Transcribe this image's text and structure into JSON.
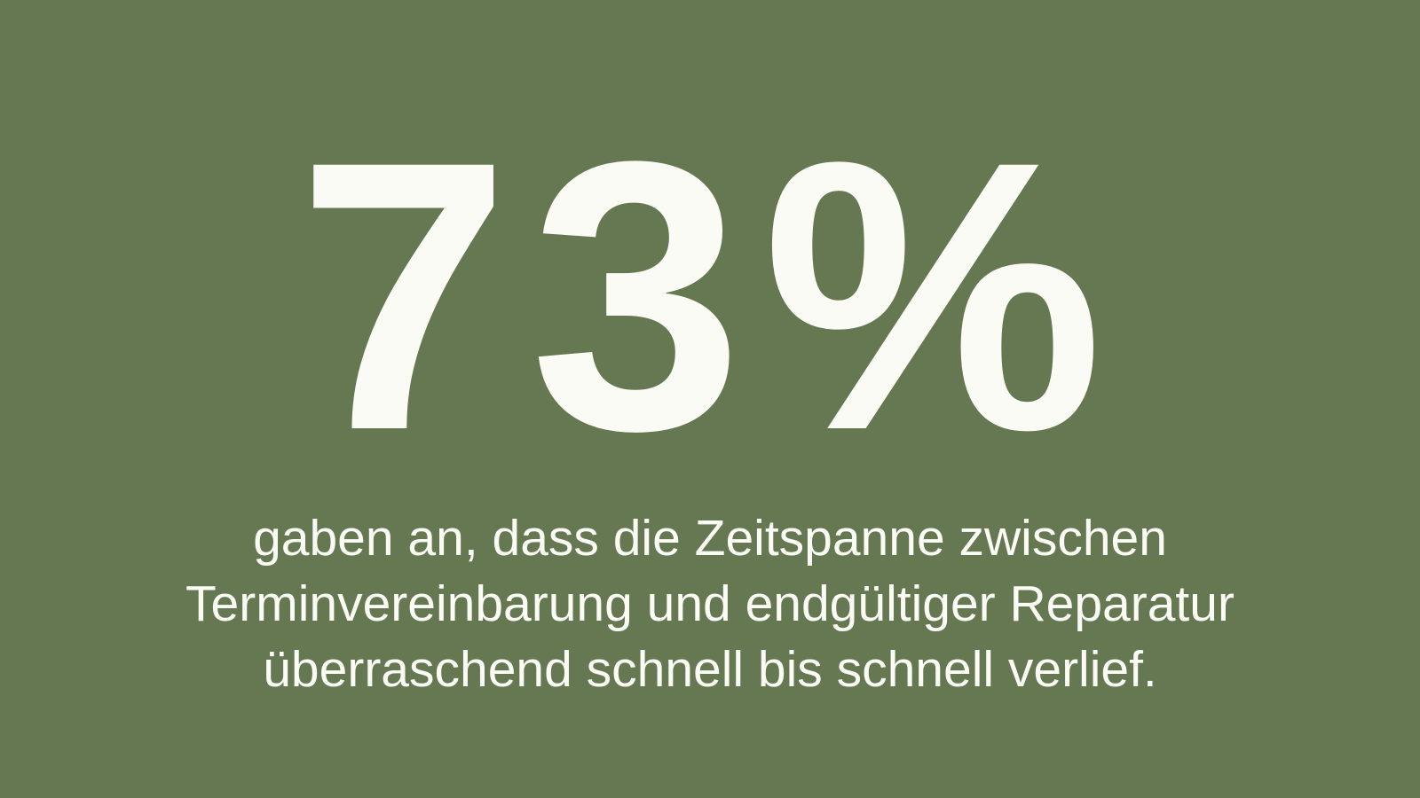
{
  "background_color": "#657851",
  "stat": "73%",
  "caption": {
    "lines": [
      "gaben an, dass die Zeitspanne zwischen",
      "Terminvereinbarung und endgültiger Reparatur",
      "überraschend schnell bis schnell verlief."
    ]
  }
}
